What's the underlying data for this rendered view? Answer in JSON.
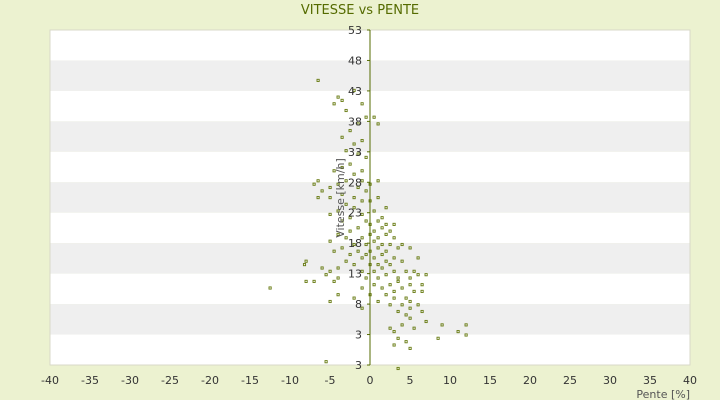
{
  "chart_data": {
    "type": "scatter",
    "title": "VITESSE vs PENTE",
    "xlabel": "Pente [%]",
    "ylabel": "Vitesse [km/h]",
    "xlim": [
      -40,
      40
    ],
    "ylim": [
      3,
      53
    ],
    "x_ticks": [
      "-40",
      "-35",
      "-30",
      "-25",
      "-20",
      "-15",
      "-10",
      "-5",
      "0",
      "5",
      "10",
      "15",
      "20",
      "25",
      "30",
      "35",
      "40"
    ],
    "y_ticks": [
      "3",
      "3",
      "8",
      "13",
      "18",
      "23",
      "28",
      "33",
      "38",
      "43",
      "48",
      "53"
    ],
    "grid": "horizontal alternating bands",
    "colors": {
      "point": "#667a10",
      "axis": "#556b00",
      "band_light": "#ffffff",
      "band_dark": "#efefef",
      "background": "#ecf2d0"
    },
    "points": [
      [
        -6.5,
        45.5
      ],
      [
        -4,
        43
      ],
      [
        -3.5,
        42.5
      ],
      [
        -4.5,
        42
      ],
      [
        -2,
        44
      ],
      [
        -3,
        41
      ],
      [
        -1,
        42
      ],
      [
        -0.5,
        40
      ],
      [
        -1.5,
        39
      ],
      [
        -2.5,
        38
      ],
      [
        -3.5,
        37
      ],
      [
        -1,
        36.5
      ],
      [
        -2,
        36
      ],
      [
        -3,
        35
      ],
      [
        -1.5,
        34.5
      ],
      [
        0.5,
        40
      ],
      [
        1,
        39
      ],
      [
        -0.5,
        34
      ],
      [
        -2.5,
        33
      ],
      [
        -3.5,
        32.5
      ],
      [
        -4.5,
        32
      ],
      [
        -1,
        32
      ],
      [
        -2,
        31.5
      ],
      [
        -3,
        30.5
      ],
      [
        -4,
        30
      ],
      [
        -5,
        29.5
      ],
      [
        -6.5,
        30.5
      ],
      [
        -7,
        30
      ],
      [
        -6,
        29
      ],
      [
        -1,
        30.5
      ],
      [
        0,
        30
      ],
      [
        1,
        30.5
      ],
      [
        -1.5,
        29.5
      ],
      [
        -0.5,
        29
      ],
      [
        -3.5,
        28.5
      ],
      [
        -5,
        28
      ],
      [
        -6.5,
        28
      ],
      [
        -2,
        28
      ],
      [
        -1,
        27.5
      ],
      [
        0,
        27.5
      ],
      [
        1,
        28
      ],
      [
        2,
        26.5
      ],
      [
        -3,
        27
      ],
      [
        -2,
        26.5
      ],
      [
        -4,
        26
      ],
      [
        -5,
        25.5
      ],
      [
        -1,
        25.5
      ],
      [
        0.5,
        26
      ],
      [
        1.5,
        25
      ],
      [
        -2.5,
        25
      ],
      [
        -3.5,
        24.5
      ],
      [
        -0.5,
        24.5
      ],
      [
        0,
        24
      ],
      [
        1,
        24.5
      ],
      [
        2,
        24
      ],
      [
        3,
        24
      ],
      [
        -1.5,
        23.5
      ],
      [
        -2.5,
        23
      ],
      [
        0.5,
        23
      ],
      [
        1.5,
        23.5
      ],
      [
        2.5,
        23
      ],
      [
        -4,
        22.5
      ],
      [
        -3,
        22
      ],
      [
        -1,
        22
      ],
      [
        0,
        22.5
      ],
      [
        1,
        22
      ],
      [
        2,
        22.5
      ],
      [
        3,
        22
      ],
      [
        -5,
        21.5
      ],
      [
        -2,
        21
      ],
      [
        -0.5,
        21
      ],
      [
        0.5,
        21.5
      ],
      [
        1.5,
        21
      ],
      [
        2.5,
        21
      ],
      [
        3.5,
        20.5
      ],
      [
        -3.5,
        20.5
      ],
      [
        -1.5,
        20
      ],
      [
        0,
        20
      ],
      [
        1,
        20.5
      ],
      [
        2,
        20
      ],
      [
        -4.5,
        20
      ],
      [
        -2.5,
        19.5
      ],
      [
        -0.5,
        19.5
      ],
      [
        1.5,
        19.5
      ],
      [
        4,
        21
      ],
      [
        5,
        20.5
      ],
      [
        3,
        19
      ],
      [
        -1,
        19
      ],
      [
        0.5,
        19
      ],
      [
        2,
        18.5
      ],
      [
        -3,
        18.5
      ],
      [
        -2,
        18
      ],
      [
        0,
        18
      ],
      [
        1,
        18
      ],
      [
        2.5,
        18
      ],
      [
        4,
        18.5
      ],
      [
        6,
        19
      ],
      [
        -8,
        18.5
      ],
      [
        -8.2,
        18
      ],
      [
        -6,
        17.5
      ],
      [
        -5,
        17
      ],
      [
        -4,
        17.5
      ],
      [
        -1,
        17
      ],
      [
        0.5,
        17
      ],
      [
        1.5,
        17.5
      ],
      [
        3,
        17
      ],
      [
        4.5,
        17
      ],
      [
        5.5,
        17
      ],
      [
        7,
        16.5
      ],
      [
        -5.5,
        16.5
      ],
      [
        -4,
        16
      ],
      [
        -0.5,
        16
      ],
      [
        1,
        16
      ],
      [
        2,
        16.5
      ],
      [
        3.5,
        16
      ],
      [
        5,
        16
      ],
      [
        6,
        16.5
      ],
      [
        -8,
        15.5
      ],
      [
        -7,
        15.5
      ],
      [
        -4.5,
        15.5
      ],
      [
        0.5,
        15
      ],
      [
        2.5,
        15
      ],
      [
        3.5,
        15.5
      ],
      [
        5,
        15
      ],
      [
        6.5,
        15
      ],
      [
        -12.5,
        14.5
      ],
      [
        -1,
        14.5
      ],
      [
        1.5,
        14.5
      ],
      [
        3,
        14
      ],
      [
        4,
        14.5
      ],
      [
        5.5,
        14
      ],
      [
        6.5,
        14
      ],
      [
        -4,
        13.5
      ],
      [
        0,
        13.5
      ],
      [
        2,
        13.5
      ],
      [
        3,
        13
      ],
      [
        4.5,
        13
      ],
      [
        5,
        12.5
      ],
      [
        -5,
        12.5
      ],
      [
        -2,
        13
      ],
      [
        1,
        12.5
      ],
      [
        2.5,
        12
      ],
      [
        4,
        12
      ],
      [
        6,
        12
      ],
      [
        3.5,
        11
      ],
      [
        5,
        11.5
      ],
      [
        6.5,
        11
      ],
      [
        -1,
        11.5
      ],
      [
        4.5,
        10.5
      ],
      [
        5,
        10
      ],
      [
        7,
        9.5
      ],
      [
        4,
        9
      ],
      [
        5.5,
        8.5
      ],
      [
        9,
        9
      ],
      [
        12,
        9
      ],
      [
        2.5,
        8.5
      ],
      [
        3,
        8
      ],
      [
        11,
        8
      ],
      [
        12,
        7.5
      ],
      [
        3.5,
        7
      ],
      [
        8.5,
        7
      ],
      [
        4.5,
        6.5
      ],
      [
        3,
        6
      ],
      [
        5,
        5.5
      ],
      [
        -5.5,
        3.5
      ],
      [
        3.5,
        2.5
      ]
    ]
  }
}
